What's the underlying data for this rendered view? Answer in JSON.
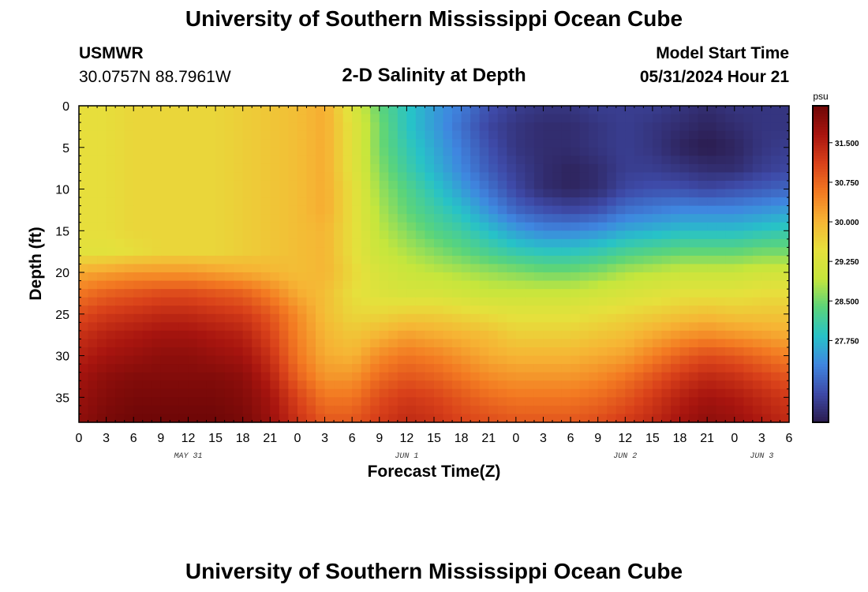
{
  "page": {
    "title": "University of Southern Mississippi Ocean Cube",
    "footer_title": "University of Southern Mississippi Ocean Cube",
    "station": "USMWR",
    "location": "30.0757N  88.7961W",
    "subtitle": "2-D Salinity at Depth",
    "model_label": "Model Start Time",
    "model_time": "05/31/2024 Hour 21"
  },
  "chart_data": {
    "type": "heatmap",
    "title": "2-D Salinity at Depth",
    "xlabel": "Forecast Time(Z)",
    "ylabel": "Depth (ft)",
    "x_hours": [
      0,
      78
    ],
    "ylim": [
      0,
      38
    ],
    "y_inverted": true,
    "x_tick_labels": [
      "0",
      "3",
      "6",
      "9",
      "12",
      "15",
      "18",
      "21",
      "0",
      "3",
      "6",
      "9",
      "12",
      "15",
      "18",
      "21",
      "0",
      "3",
      "6",
      "9",
      "12",
      "15",
      "18",
      "21",
      "0",
      "3",
      "6"
    ],
    "y_ticks": [
      0,
      5,
      10,
      15,
      20,
      25,
      30,
      35
    ],
    "date_labels": [
      {
        "label": "MAY 31",
        "hour": 12
      },
      {
        "label": "JUN 1",
        "hour": 36
      },
      {
        "label": "JUN 2",
        "hour": 60
      },
      {
        "label": "JUN 3",
        "hour": 75
      }
    ],
    "colorbar": {
      "unit": "psu",
      "range": [
        26.2,
        32.2
      ],
      "ticks": [
        27.75,
        28.5,
        29.25,
        30.0,
        30.75,
        31.5
      ],
      "tick_labels": [
        "27.750",
        "28.500",
        "29.250",
        "30.000",
        "30.750",
        "31.500"
      ],
      "colors": [
        "#2b1c4e",
        "#3e4aa8",
        "#3f86e0",
        "#27c2c8",
        "#5bd47a",
        "#c6e63c",
        "#e6e03c",
        "#f6b434",
        "#f37a22",
        "#d9411a",
        "#a8150f",
        "#6e0707"
      ]
    },
    "contour_points_depth_ft_by_hour": {
      "hour": [
        0,
        3,
        6,
        9,
        12,
        15,
        18,
        21,
        24,
        27,
        30,
        33,
        36,
        39,
        42,
        45,
        48,
        51,
        54,
        57,
        60,
        63,
        66,
        69,
        72,
        75,
        78
      ],
      "depth": [
        0,
        2.5,
        5,
        7.5,
        10,
        12.5,
        15,
        17.5,
        20,
        22.5,
        25,
        27.5,
        30,
        32.5,
        35,
        38
      ],
      "salinity": [
        [
          29.5,
          29.5,
          29.6,
          29.6,
          29.6,
          29.6,
          29.7,
          29.8,
          29.9,
          30.1,
          29.3,
          28.4,
          27.9,
          27.5,
          27.2,
          26.8,
          26.6,
          26.5,
          26.5,
          26.6,
          26.6,
          26.6,
          26.5,
          26.4,
          26.5,
          26.5,
          26.5
        ],
        [
          29.5,
          29.5,
          29.6,
          29.6,
          29.6,
          29.6,
          29.7,
          29.8,
          29.9,
          30.1,
          29.4,
          28.5,
          27.9,
          27.5,
          27.1,
          26.7,
          26.5,
          26.4,
          26.4,
          26.5,
          26.6,
          26.5,
          26.4,
          26.3,
          26.4,
          26.5,
          26.5
        ],
        [
          29.5,
          29.5,
          29.6,
          29.6,
          29.6,
          29.6,
          29.7,
          29.8,
          29.9,
          30.1,
          29.4,
          28.5,
          28.0,
          27.6,
          27.2,
          26.8,
          26.5,
          26.4,
          26.4,
          26.5,
          26.6,
          26.5,
          26.3,
          26.2,
          26.3,
          26.5,
          26.6
        ],
        [
          29.5,
          29.5,
          29.6,
          29.6,
          29.6,
          29.6,
          29.7,
          29.8,
          29.9,
          30.1,
          29.4,
          28.6,
          28.1,
          27.7,
          27.3,
          26.9,
          26.6,
          26.4,
          26.3,
          26.4,
          26.6,
          26.6,
          26.5,
          26.4,
          26.4,
          26.6,
          26.7
        ],
        [
          29.5,
          29.5,
          29.6,
          29.6,
          29.6,
          29.6,
          29.7,
          29.8,
          29.9,
          30.1,
          29.5,
          28.7,
          28.3,
          27.9,
          27.5,
          27.1,
          26.7,
          26.4,
          26.3,
          26.4,
          26.7,
          26.8,
          26.8,
          26.7,
          26.8,
          26.9,
          27.0
        ],
        [
          29.5,
          29.5,
          29.6,
          29.6,
          29.6,
          29.6,
          29.7,
          29.8,
          29.9,
          30.1,
          29.5,
          28.8,
          28.4,
          28.1,
          27.8,
          27.4,
          27.0,
          26.8,
          26.7,
          26.8,
          27.1,
          27.2,
          27.3,
          27.3,
          27.3,
          27.4,
          27.5
        ],
        [
          29.5,
          29.5,
          29.6,
          29.6,
          29.6,
          29.6,
          29.7,
          29.8,
          29.9,
          30.0,
          29.5,
          28.9,
          28.6,
          28.3,
          28.1,
          27.8,
          27.5,
          27.3,
          27.3,
          27.4,
          27.6,
          27.7,
          27.8,
          27.8,
          27.8,
          27.9,
          28.0
        ],
        [
          29.4,
          29.4,
          29.5,
          29.6,
          29.6,
          29.6,
          29.7,
          29.8,
          29.9,
          30.0,
          29.5,
          29.0,
          28.8,
          28.6,
          28.4,
          28.2,
          28.0,
          27.9,
          27.9,
          28.0,
          28.2,
          28.3,
          28.4,
          28.4,
          28.4,
          28.5,
          28.5
        ],
        [
          30.1,
          30.2,
          30.3,
          30.3,
          30.3,
          30.2,
          30.1,
          30.0,
          29.9,
          30.0,
          29.6,
          29.2,
          29.0,
          28.9,
          28.8,
          28.7,
          28.6,
          28.5,
          28.5,
          28.6,
          28.8,
          28.9,
          29.0,
          29.0,
          29.0,
          29.1,
          29.1
        ],
        [
          30.6,
          30.8,
          30.9,
          31.0,
          31.0,
          30.9,
          30.8,
          30.5,
          30.1,
          29.9,
          29.5,
          29.3,
          29.2,
          29.2,
          29.1,
          29.0,
          29.0,
          29.0,
          29.0,
          29.1,
          29.2,
          29.3,
          29.4,
          29.4,
          29.4,
          29.5,
          29.5
        ],
        [
          31.0,
          31.2,
          31.3,
          31.4,
          31.4,
          31.3,
          31.2,
          30.9,
          30.4,
          29.9,
          29.6,
          29.6,
          29.7,
          29.7,
          29.6,
          29.5,
          29.4,
          29.4,
          29.4,
          29.5,
          29.6,
          29.7,
          29.8,
          29.9,
          29.8,
          29.8,
          29.8
        ],
        [
          31.3,
          31.5,
          31.6,
          31.7,
          31.7,
          31.6,
          31.5,
          31.1,
          30.5,
          30.0,
          29.8,
          30.0,
          30.2,
          30.1,
          30.0,
          29.9,
          29.7,
          29.7,
          29.7,
          29.8,
          29.9,
          30.1,
          30.3,
          30.4,
          30.3,
          30.2,
          30.1
        ],
        [
          31.5,
          31.7,
          31.8,
          31.9,
          31.9,
          31.8,
          31.7,
          31.3,
          30.6,
          30.1,
          30.0,
          30.4,
          30.6,
          30.5,
          30.3,
          30.1,
          30.0,
          30.0,
          30.0,
          30.1,
          30.2,
          30.5,
          30.8,
          31.0,
          30.9,
          30.7,
          30.5
        ],
        [
          31.7,
          31.9,
          32.0,
          32.0,
          32.0,
          32.0,
          31.9,
          31.5,
          30.8,
          30.3,
          30.3,
          30.7,
          30.9,
          30.8,
          30.6,
          30.4,
          30.3,
          30.3,
          30.3,
          30.4,
          30.6,
          30.9,
          31.2,
          31.4,
          31.3,
          31.1,
          30.9
        ],
        [
          31.8,
          32.0,
          32.1,
          32.1,
          32.1,
          32.1,
          32.0,
          31.7,
          31.1,
          30.6,
          30.6,
          31.0,
          31.2,
          31.1,
          30.9,
          30.7,
          30.6,
          30.6,
          30.6,
          30.7,
          30.9,
          31.2,
          31.5,
          31.7,
          31.6,
          31.4,
          31.2
        ],
        [
          31.9,
          32.1,
          32.2,
          32.2,
          32.2,
          32.2,
          32.1,
          31.8,
          31.3,
          30.9,
          30.9,
          31.2,
          31.4,
          31.3,
          31.1,
          31.0,
          30.9,
          30.9,
          30.9,
          31.0,
          31.2,
          31.4,
          31.7,
          31.9,
          31.8,
          31.6,
          31.4
        ]
      ]
    }
  }
}
